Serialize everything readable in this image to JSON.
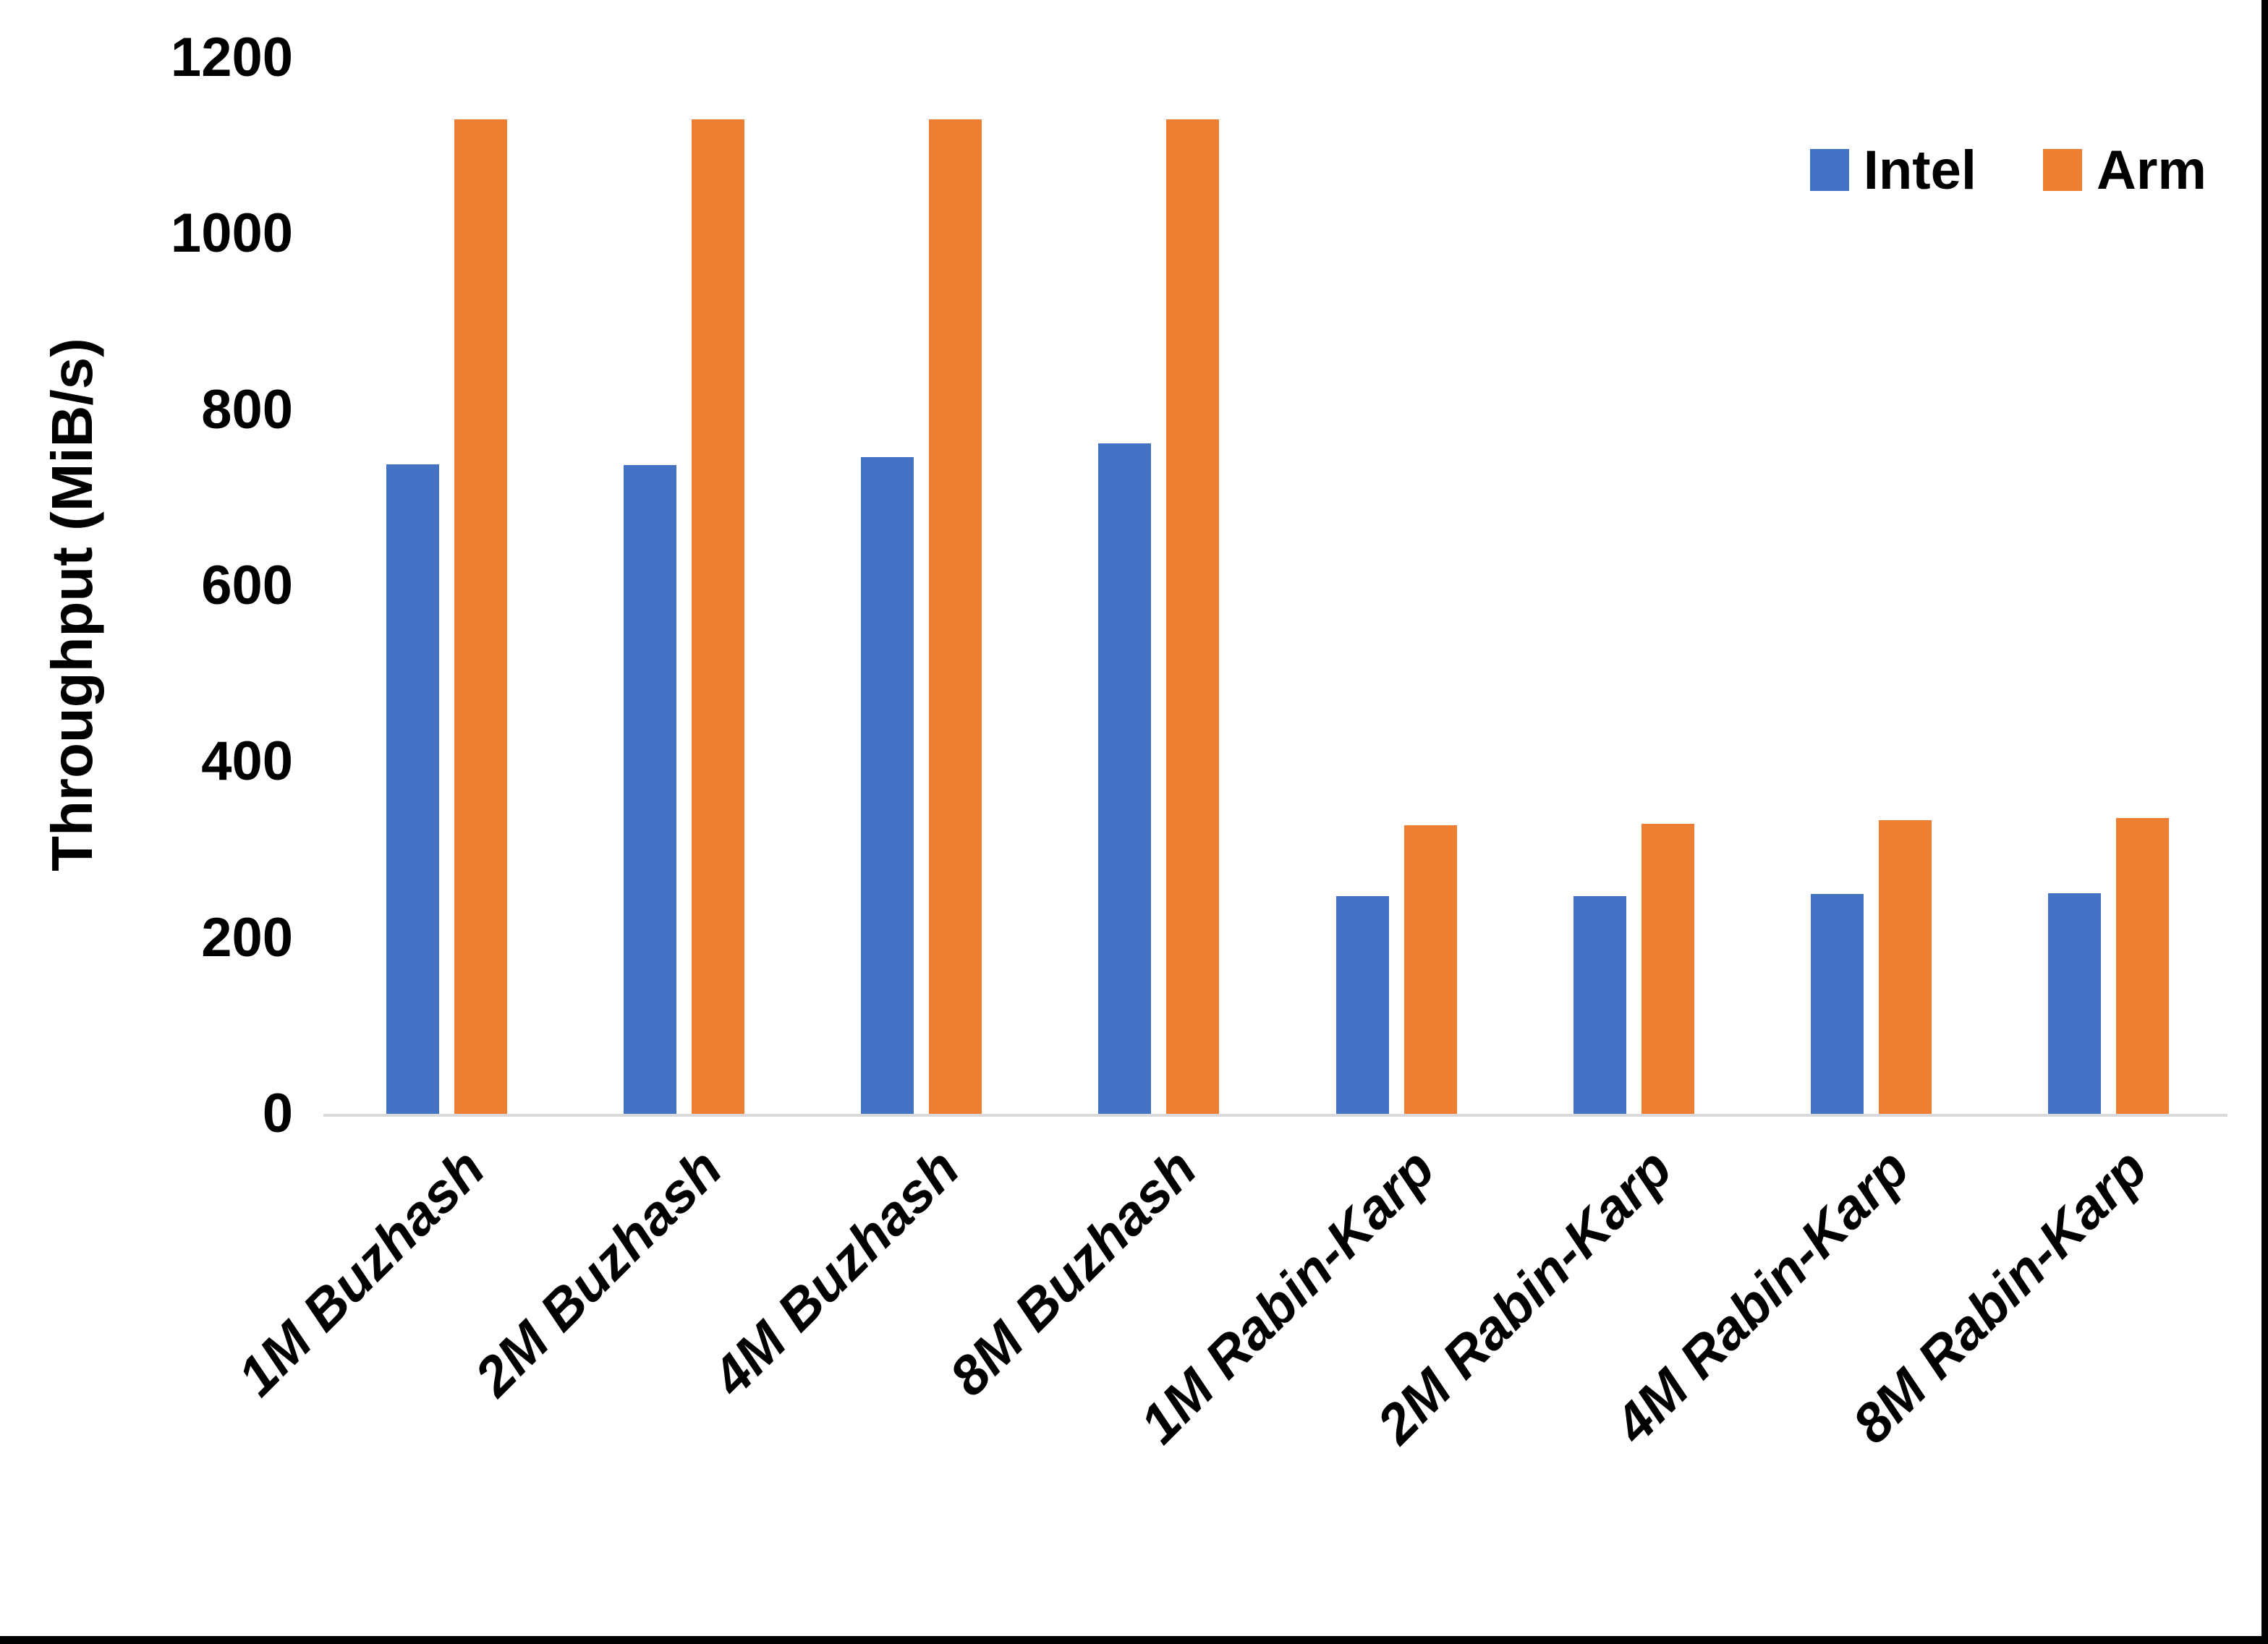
{
  "chart_data": {
    "type": "bar",
    "title": "",
    "ylabel": "Throughput (MiB/s)",
    "xlabel": "",
    "ylim": [
      0,
      1200
    ],
    "yticks": [
      0,
      200,
      400,
      600,
      800,
      1000,
      1200
    ],
    "grid": false,
    "legend_position": "top-right",
    "categories": [
      "1M Buzhash",
      "2M Buzhash",
      "4M Buzhash",
      "8M Buzhash",
      "1M Rabin-Karp",
      "2M Rabin-Karp",
      "4M Rabin-Karp",
      "8M Rabin-Karp"
    ],
    "series": [
      {
        "name": "Intel",
        "color": "#4472C4",
        "values": [
          738,
          737,
          746,
          762,
          247,
          247,
          250,
          251
        ]
      },
      {
        "name": "Arm",
        "color": "#ED7D31",
        "values": [
          1130,
          1130,
          1130,
          1130,
          328,
          330,
          334,
          336
        ]
      }
    ],
    "axis_line_color": "#D9D9D9",
    "frame_color": "#000000"
  }
}
